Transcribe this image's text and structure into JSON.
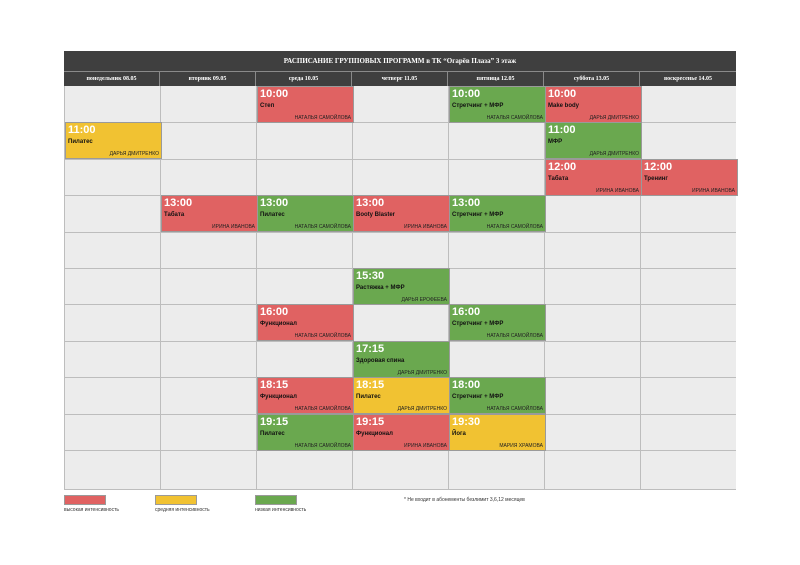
{
  "title": "РАСПИСАНИЕ ГРУППОВЫХ ПРОГРАММ в ТК “Огарёв Плаза” 3 этаж",
  "days": [
    "понедельник 08.05",
    "вторник 09.05",
    "среда 10.05",
    "четверг 11.05",
    "пятница 12.05",
    "суббота 13.05",
    "воскресенье 14.05"
  ],
  "colors": {
    "high": "#e06262",
    "medium": "#f1c232",
    "low": "#6aa84f"
  },
  "events": [
    {
      "day": 2,
      "slot": 0,
      "intensity": "red",
      "time": "10:00",
      "name": "Степ",
      "trainer": "НАТАЛЬЯ САМОЙЛОВА"
    },
    {
      "day": 4,
      "slot": 0,
      "intensity": "green",
      "time": "10:00",
      "name": "Стретчинг + МФР",
      "trainer": "НАТАЛЬЯ САМОЙЛОВА"
    },
    {
      "day": 5,
      "slot": 0,
      "intensity": "red",
      "time": "10:00",
      "name": "Make body",
      "trainer": "ДАРЬЯ ДМИТРЕНКО"
    },
    {
      "day": 0,
      "slot": 1,
      "intensity": "yellow",
      "time": "11:00",
      "name": "Пилатес",
      "trainer": "ДАРЬЯ ДМИТРЕНКО"
    },
    {
      "day": 5,
      "slot": 1,
      "intensity": "green",
      "time": "11:00",
      "name": "МФР",
      "trainer": "ДАРЬЯ ДМИТРЕНКО"
    },
    {
      "day": 5,
      "slot": 2,
      "intensity": "red",
      "time": "12:00",
      "name": "Табата",
      "trainer": "ИРИНА ИВАНОВА"
    },
    {
      "day": 6,
      "slot": 2,
      "intensity": "red",
      "time": "12:00",
      "name": "Тренинг",
      "trainer": "ИРИНА ИВАНОВА"
    },
    {
      "day": 1,
      "slot": 3,
      "intensity": "red",
      "time": "13:00",
      "name": "Табата",
      "trainer": "ИРИНА ИВАНОВА"
    },
    {
      "day": 2,
      "slot": 3,
      "intensity": "green",
      "time": "13:00",
      "name": "Пилатес",
      "trainer": "НАТАЛЬЯ САМОЙЛОВА"
    },
    {
      "day": 3,
      "slot": 3,
      "intensity": "red",
      "time": "13:00",
      "name": "Booty Blaster",
      "trainer": "ИРИНА ИВАНОВА"
    },
    {
      "day": 4,
      "slot": 3,
      "intensity": "green",
      "time": "13:00",
      "name": "Стретчинг + МФР",
      "trainer": "НАТАЛЬЯ САМОЙЛОВА"
    },
    {
      "day": 3,
      "slot": 5,
      "intensity": "green",
      "time": "15:30",
      "name": "Растяжка + МФР",
      "trainer": "ДАРЬЯ ЕРОФЕЕВА"
    },
    {
      "day": 2,
      "slot": 6,
      "intensity": "red",
      "time": "16:00",
      "name": "Функционал",
      "trainer": "НАТАЛЬЯ САМОЙЛОВА"
    },
    {
      "day": 4,
      "slot": 6,
      "intensity": "green",
      "time": "16:00",
      "name": "Стретчинг + МФР",
      "trainer": "НАТАЛЬЯ САМОЙЛОВА"
    },
    {
      "day": 3,
      "slot": 7,
      "intensity": "green",
      "time": "17:15",
      "name": "Здоровая спина",
      "trainer": "ДАРЬЯ ДМИТРЕНКО"
    },
    {
      "day": 2,
      "slot": 8,
      "intensity": "red",
      "time": "18:15",
      "name": "Функционал",
      "trainer": "НАТАЛЬЯ САМОЙЛОВА"
    },
    {
      "day": 3,
      "slot": 8,
      "intensity": "yellow",
      "time": "18:15",
      "name": "Пилатес",
      "trainer": "ДАРЬЯ ДМИТРЕНКО"
    },
    {
      "day": 4,
      "slot": 8,
      "intensity": "green",
      "time": "18:00",
      "name": "Стретчинг + МФР",
      "trainer": "НАТАЛЬЯ САМОЙЛОВА"
    },
    {
      "day": 2,
      "slot": 9,
      "intensity": "green",
      "time": "19:15",
      "name": "Пилатес",
      "trainer": "НАТАЛЬЯ САМОЙЛОВА"
    },
    {
      "day": 3,
      "slot": 9,
      "intensity": "red",
      "time": "19:15",
      "name": "Функционал",
      "trainer": "ИРИНА ИВАНОВА"
    },
    {
      "day": 4,
      "slot": 9,
      "intensity": "yellow",
      "time": "19:30",
      "name": "Йога",
      "trainer": "МАРИЯ ХРАМОВА"
    }
  ],
  "legend": {
    "high": "высокая интенсивность",
    "medium": "средняя интенсивность",
    "low": "низкая интенсивность"
  },
  "note": "* Не входит в абонементы безлимит 3,6,12 месяцев"
}
